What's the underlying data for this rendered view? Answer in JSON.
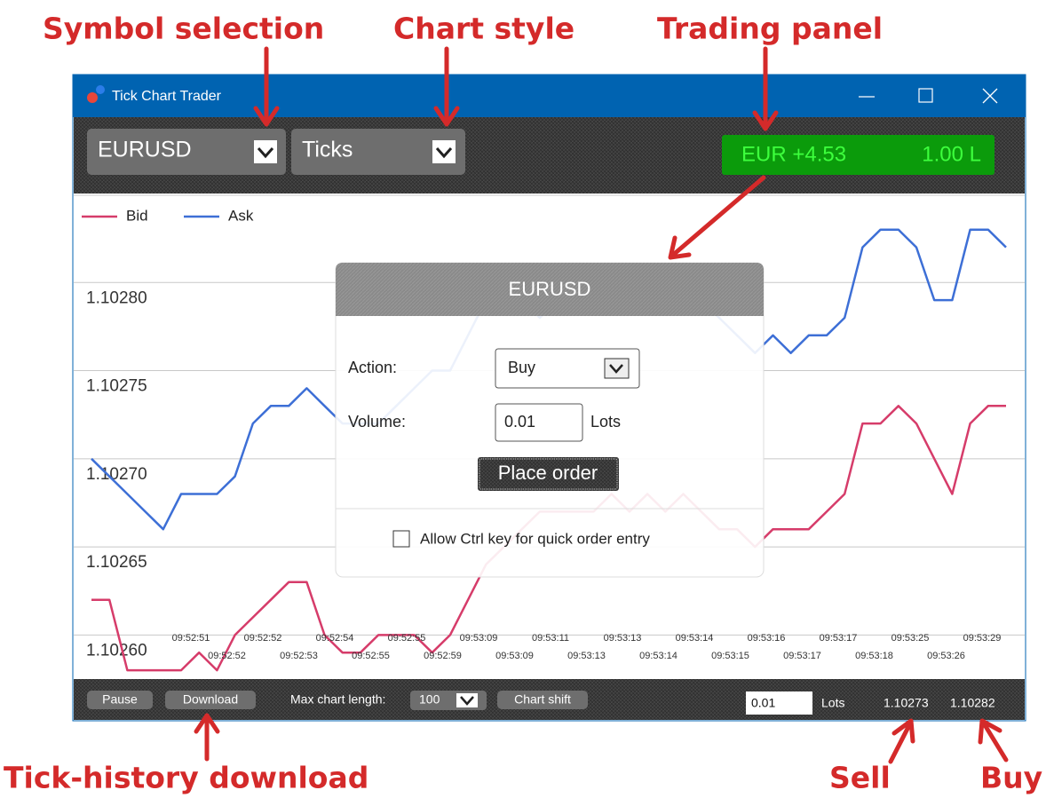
{
  "annotations": {
    "symbol_selection": "Symbol selection",
    "chart_style": "Chart style",
    "trading_panel": "Trading panel",
    "tick_history_download": "Tick-history download",
    "sell": "Sell",
    "buy": "Buy"
  },
  "window": {
    "title": "Tick Chart Trader"
  },
  "toolbar": {
    "symbol": "EURUSD",
    "chart_style": "Ticks",
    "trading_panel": {
      "profit": "EUR +4.53",
      "lots": "1.00 L"
    }
  },
  "chart_data": {
    "type": "line",
    "series": [
      {
        "name": "Bid",
        "color": "#d63c6a",
        "values": [
          1.10262,
          1.10262,
          1.10258,
          1.10258,
          1.10258,
          1.10258,
          1.10259,
          1.10258,
          1.1026,
          1.10261,
          1.10262,
          1.10263,
          1.10263,
          1.1026,
          1.10259,
          1.10259,
          1.1026,
          1.1026,
          1.1026,
          1.10259,
          1.1026,
          1.10262,
          1.10264,
          1.10265,
          1.10266,
          1.10267,
          1.10267,
          1.10267,
          1.10267,
          1.10268,
          1.10267,
          1.10268,
          1.10267,
          1.10268,
          1.10267,
          1.10266,
          1.10266,
          1.10265,
          1.10266,
          1.10266,
          1.10266,
          1.10267,
          1.10268,
          1.10272,
          1.10272,
          1.10273,
          1.10272,
          1.1027,
          1.10268,
          1.10272,
          1.10273,
          1.10273
        ]
      },
      {
        "name": "Ask",
        "color": "#3d6fd6",
        "values": [
          1.1027,
          1.10269,
          1.10268,
          1.10267,
          1.10266,
          1.10268,
          1.10268,
          1.10268,
          1.10269,
          1.10272,
          1.10273,
          1.10273,
          1.10274,
          1.10273,
          1.10272,
          1.10272,
          1.10272,
          1.10273,
          1.10274,
          1.10275,
          1.10275,
          1.10277,
          1.10279,
          1.1028,
          1.10279,
          1.10278,
          1.10279,
          1.1028,
          1.1028,
          1.10279,
          1.10279,
          1.1028,
          1.10281,
          1.1028,
          1.10279,
          1.10278,
          1.10277,
          1.10276,
          1.10277,
          1.10276,
          1.10277,
          1.10277,
          1.10278,
          1.10282,
          1.10283,
          1.10283,
          1.10282,
          1.10279,
          1.10279,
          1.10283,
          1.10283,
          1.10282
        ]
      }
    ],
    "ylim": [
      1.102575,
      1.10285
    ],
    "yticks": [
      {
        "value": 1.1026,
        "label": "1.10260"
      },
      1.10265,
      {
        "value": 1.1027,
        "label": "1.10270"
      },
      1.10275,
      {
        "value": 1.1028,
        "label": "1.10280"
      }
    ],
    "grid": true,
    "time_labels": [
      "09:52:51",
      "09:52:52",
      "09:52:52",
      "09:52:53",
      "09:52:54",
      "09:52:55",
      "09:52:55",
      "09:52:59",
      "09:53:09",
      "09:53:09",
      "09:53:11",
      "09:53:13",
      "09:53:13",
      "09:53:14",
      "09:53:14",
      "09:53:15",
      "09:53:16",
      "09:53:17",
      "09:53:17",
      "09:53:18",
      "09:53:25",
      "09:53:26",
      "09:53:29"
    ]
  },
  "order_dialog": {
    "title": "EURUSD",
    "action_label": "Action:",
    "action": "Buy",
    "volume_label": "Volume:",
    "volume": "0.01",
    "volume_unit": "Lots",
    "button": "Place order",
    "checkbox": "Allow Ctrl key for quick order entry"
  },
  "status_bar": {
    "pause": "Pause",
    "download": "Download",
    "max_length_label": "Max chart length:",
    "max_length": "100",
    "chart_shift": "Chart shift",
    "volume": "0.01",
    "volume_unit": "Lots",
    "sell": "1.10273",
    "buy": "1.10282"
  }
}
